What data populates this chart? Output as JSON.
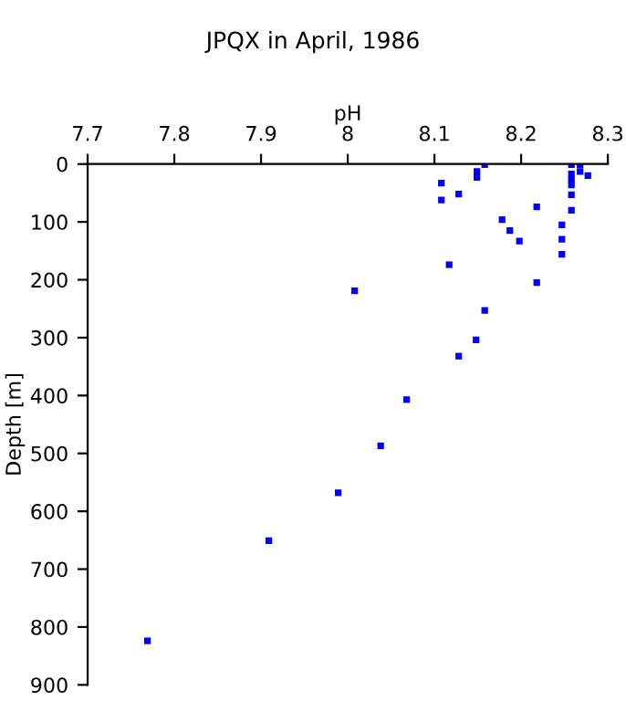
{
  "chart_data": {
    "type": "scatter",
    "title": "JPQX in April, 1986",
    "xlabel": "pH",
    "ylabel": "Depth [m]",
    "x": [
      8.158,
      8.149,
      8.149,
      8.108,
      8.128,
      8.108,
      8.258,
      8.268,
      8.268,
      8.277,
      8.258,
      8.258,
      8.258,
      8.258,
      8.258,
      8.218,
      8.178,
      8.187,
      8.198,
      8.247,
      8.247,
      8.247,
      8.117,
      8.218,
      8.008,
      8.158,
      8.148,
      8.128,
      8.068,
      8.038,
      7.989,
      7.909,
      7.769
    ],
    "values": [
      1,
      13,
      23,
      33,
      52,
      62,
      1,
      1,
      13,
      20,
      17,
      27,
      36,
      53,
      80,
      74,
      96,
      115,
      133,
      105,
      130,
      156,
      174,
      205,
      219,
      253,
      304,
      332,
      407,
      487,
      568,
      651,
      824
    ],
    "color": "#0000ff",
    "marker": "square",
    "xlim": [
      7.7,
      8.3
    ],
    "xticks": [
      7.7,
      7.8,
      7.9,
      {
        "value": 8.0,
        "label": "8"
      },
      8.1,
      8.2,
      8.3
    ],
    "ylim": [
      900,
      0
    ],
    "yticks": [
      0,
      100,
      200,
      300,
      400,
      500,
      600,
      700,
      800,
      900
    ],
    "grid": false,
    "legend": false
  }
}
